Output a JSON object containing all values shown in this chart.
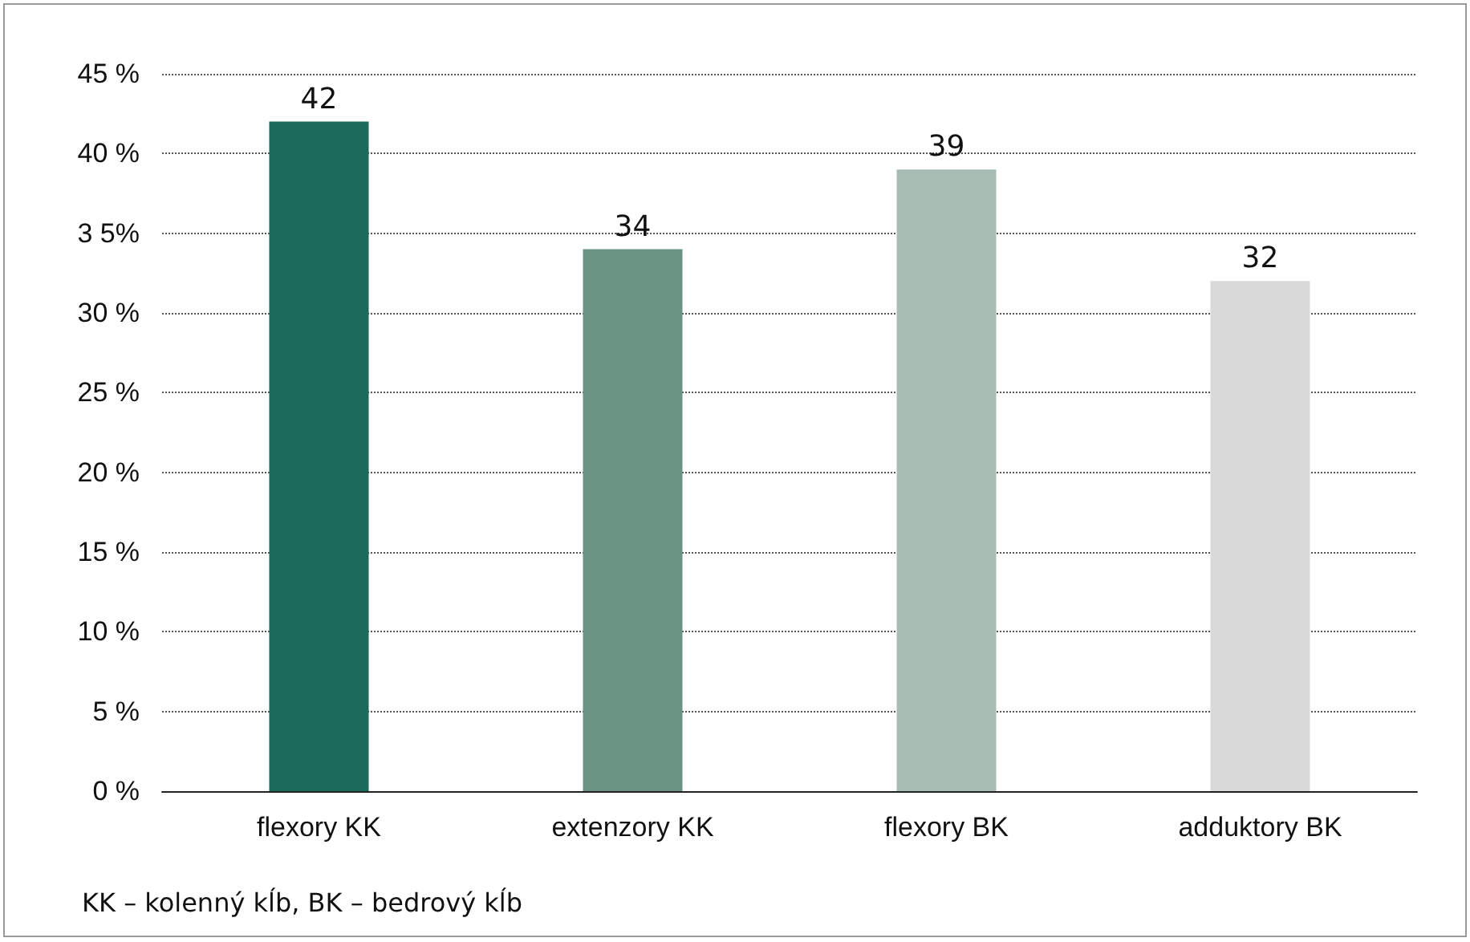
{
  "chart_data": {
    "type": "bar",
    "categories": [
      "flexory KK",
      "extenzory KK",
      "flexory BK",
      "adduktory BK"
    ],
    "values": [
      42,
      34,
      39,
      32
    ],
    "colors": [
      "#1b6b5a",
      "#6b9384",
      "#a9bcb3",
      "#d9d9d9"
    ],
    "ylim": [
      0,
      45
    ],
    "yticks": [
      {
        "value": 0,
        "label": "0 %"
      },
      {
        "value": 5,
        "label": "5 %"
      },
      {
        "value": 10,
        "label": "10 %"
      },
      {
        "value": 15,
        "label": "15 %"
      },
      {
        "value": 20,
        "label": "20 %"
      },
      {
        "value": 25,
        "label": "25 %"
      },
      {
        "value": 30,
        "label": "30 %"
      },
      {
        "value": 35,
        "label": "3 5%"
      },
      {
        "value": 40,
        "label": "40 %"
      },
      {
        "value": 45,
        "label": "45 %"
      }
    ],
    "grid": "y",
    "data_labels": true,
    "annotations": [
      "KK – kolenný kĺb, BK – bedrový kĺb"
    ]
  }
}
